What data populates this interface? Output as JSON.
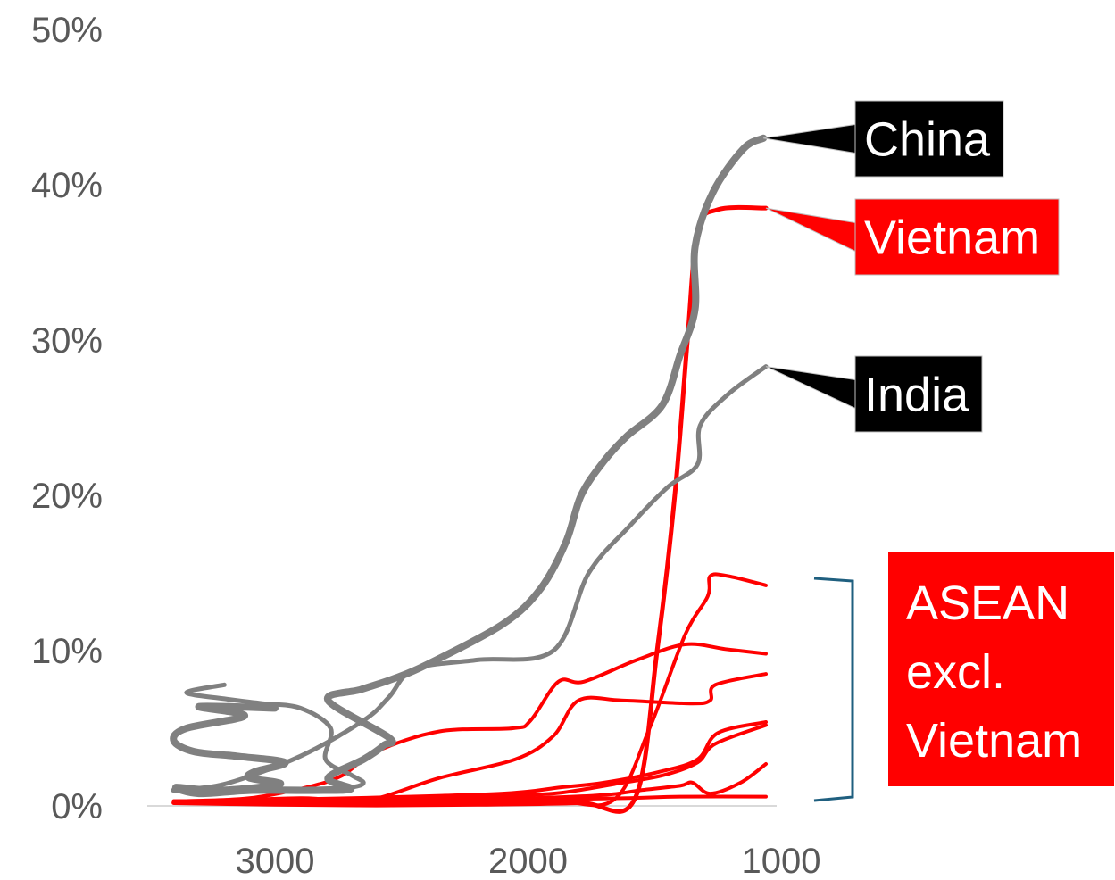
{
  "chart_data": {
    "type": "line",
    "title": "",
    "xlabel": "",
    "ylabel": "",
    "x_reversed": true,
    "xlim": [
      3400,
      1000
    ],
    "ylim": [
      0,
      0.5
    ],
    "x_ticks": [
      3000,
      2000,
      1000
    ],
    "x_tick_labels": [
      "3000",
      "2000",
      "1000"
    ],
    "y_ticks": [
      0,
      0.1,
      0.2,
      0.3,
      0.4,
      0.5
    ],
    "y_tick_labels": [
      "0%",
      "10%",
      "20%",
      "30%",
      "40%",
      "50%"
    ],
    "colors": {
      "china_india": "#808080",
      "asean": "#ff0000",
      "bracket": "#1f5f7f",
      "china_label_bg": "#000000",
      "vietnam_label_bg": "#ff0000"
    },
    "series": [
      {
        "name": "China",
        "color": "#808080",
        "width": 8,
        "points": [
          [
            3000,
            0.063
          ],
          [
            3300,
            0.064
          ],
          [
            3120,
            0.058
          ],
          [
            3350,
            0.05
          ],
          [
            3400,
            0.042
          ],
          [
            3320,
            0.035
          ],
          [
            3150,
            0.032
          ],
          [
            2960,
            0.028
          ],
          [
            3080,
            0.022
          ],
          [
            3100,
            0.018
          ],
          [
            2980,
            0.014
          ],
          [
            3220,
            0.01
          ],
          [
            3390,
            0.012
          ],
          [
            3300,
            0.008
          ],
          [
            3100,
            0.01
          ],
          [
            2850,
            0.01
          ],
          [
            2700,
            0.011
          ],
          [
            2790,
            0.018
          ],
          [
            2650,
            0.03
          ],
          [
            2570,
            0.039
          ],
          [
            2550,
            0.044
          ],
          [
            2790,
            0.068
          ],
          [
            2660,
            0.075
          ],
          [
            2530,
            0.082
          ],
          [
            2400,
            0.091
          ],
          [
            2100,
            0.117
          ],
          [
            1950,
            0.14
          ],
          [
            1850,
            0.17
          ],
          [
            1790,
            0.2
          ],
          [
            1700,
            0.222
          ],
          [
            1610,
            0.238
          ],
          [
            1470,
            0.258
          ],
          [
            1400,
            0.29
          ],
          [
            1340,
            0.32
          ],
          [
            1340,
            0.36
          ],
          [
            1270,
            0.395
          ],
          [
            1150,
            0.423
          ],
          [
            1070,
            0.43
          ]
        ]
      },
      {
        "name": "India",
        "color": "#808080",
        "width": 5,
        "points": [
          [
            3200,
            0.078
          ],
          [
            3350,
            0.073
          ],
          [
            3200,
            0.069
          ],
          [
            3050,
            0.066
          ],
          [
            2900,
            0.063
          ],
          [
            2780,
            0.05
          ],
          [
            2800,
            0.03
          ],
          [
            2700,
            0.02
          ],
          [
            2650,
            0.015
          ],
          [
            2700,
            0.012
          ],
          [
            2850,
            0.011
          ],
          [
            3050,
            0.011
          ],
          [
            3400,
            0.01
          ],
          [
            3200,
            0.014
          ],
          [
            2900,
            0.032
          ],
          [
            2650,
            0.055
          ],
          [
            2550,
            0.07
          ],
          [
            2450,
            0.088
          ],
          [
            2200,
            0.094
          ],
          [
            1900,
            0.1
          ],
          [
            1760,
            0.15
          ],
          [
            1600,
            0.18
          ],
          [
            1450,
            0.205
          ],
          [
            1330,
            0.22
          ],
          [
            1320,
            0.245
          ],
          [
            1210,
            0.265
          ],
          [
            1060,
            0.283
          ]
        ]
      },
      {
        "name": "Vietnam",
        "color": "#ff0000",
        "width": 5,
        "points": [
          [
            3400,
            0.002
          ],
          [
            3000,
            0.001
          ],
          [
            2600,
            0.0005
          ],
          [
            2200,
            0.001
          ],
          [
            1800,
            0.002
          ],
          [
            1580,
            0.004
          ],
          [
            1490,
            0.1
          ],
          [
            1420,
            0.2
          ],
          [
            1370,
            0.3
          ],
          [
            1330,
            0.37
          ],
          [
            1250,
            0.384
          ],
          [
            1060,
            0.385
          ]
        ]
      },
      {
        "name": "",
        "color": "#ff0000",
        "width": 4,
        "points": [
          [
            3400,
            0.003
          ],
          [
            3100,
            0.005
          ],
          [
            2850,
            0.013
          ],
          [
            2730,
            0.02
          ],
          [
            2600,
            0.035
          ],
          [
            2350,
            0.048
          ],
          [
            2060,
            0.05
          ],
          [
            1990,
            0.055
          ],
          [
            1880,
            0.08
          ],
          [
            1780,
            0.08
          ],
          [
            1570,
            0.094
          ],
          [
            1380,
            0.104
          ],
          [
            1220,
            0.101
          ],
          [
            1060,
            0.098
          ]
        ]
      },
      {
        "name": "",
        "color": "#ff0000",
        "width": 4,
        "points": [
          [
            3400,
            0.002
          ],
          [
            2900,
            0.005
          ],
          [
            2650,
            0.003
          ],
          [
            2350,
            0.018
          ],
          [
            2050,
            0.03
          ],
          [
            1900,
            0.045
          ],
          [
            1800,
            0.068
          ],
          [
            1630,
            0.068
          ],
          [
            1360,
            0.066
          ],
          [
            1280,
            0.068
          ],
          [
            1260,
            0.078
          ],
          [
            1060,
            0.085
          ]
        ]
      },
      {
        "name": "",
        "color": "#ff0000",
        "width": 4,
        "points": [
          [
            3400,
            0.003
          ],
          [
            2900,
            0.003
          ],
          [
            2300,
            0.002
          ],
          [
            1900,
            0.003
          ],
          [
            1660,
            0.004
          ],
          [
            1520,
            0.05
          ],
          [
            1380,
            0.11
          ],
          [
            1290,
            0.135
          ],
          [
            1280,
            0.148
          ],
          [
            1210,
            0.148
          ],
          [
            1060,
            0.142
          ]
        ]
      },
      {
        "name": "",
        "color": "#ff0000",
        "width": 4,
        "points": [
          [
            3400,
            0.003
          ],
          [
            2700,
            0.005
          ],
          [
            2100,
            0.008
          ],
          [
            1870,
            0.012
          ],
          [
            1700,
            0.015
          ],
          [
            1480,
            0.022
          ],
          [
            1330,
            0.03
          ],
          [
            1250,
            0.047
          ],
          [
            1060,
            0.054
          ]
        ]
      },
      {
        "name": "",
        "color": "#ff0000",
        "width": 4,
        "points": [
          [
            3400,
            0.003
          ],
          [
            2700,
            0.004
          ],
          [
            2200,
            0.006
          ],
          [
            1900,
            0.008
          ],
          [
            1660,
            0.014
          ],
          [
            1460,
            0.02
          ],
          [
            1330,
            0.028
          ],
          [
            1260,
            0.04
          ],
          [
            1060,
            0.052
          ]
        ]
      },
      {
        "name": "",
        "color": "#ff0000",
        "width": 4,
        "points": [
          [
            3400,
            0.002
          ],
          [
            2600,
            0.003
          ],
          [
            2000,
            0.005
          ],
          [
            1700,
            0.007
          ],
          [
            1560,
            0.01
          ],
          [
            1400,
            0.013
          ],
          [
            1350,
            0.015
          ],
          [
            1280,
            0.008
          ],
          [
            1160,
            0.015
          ],
          [
            1060,
            0.027
          ]
        ]
      },
      {
        "name": "",
        "color": "#ff0000",
        "width": 4,
        "points": [
          [
            3400,
            0.002
          ],
          [
            2600,
            0.003
          ],
          [
            2000,
            0.004
          ],
          [
            1600,
            0.005
          ],
          [
            1400,
            0.006
          ],
          [
            1060,
            0.006
          ]
        ]
      }
    ],
    "annotations": [
      {
        "text": "China",
        "bg": "#000000",
        "anchor_series": "China"
      },
      {
        "text": "Vietnam",
        "bg": "#ff0000",
        "anchor_series": "Vietnam"
      },
      {
        "text": "India",
        "bg": "#000000",
        "anchor_series": "India"
      },
      {
        "text": "ASEAN excl. Vietnam",
        "lines": [
          "ASEAN",
          "excl.",
          "Vietnam"
        ],
        "bg": "#ff0000"
      }
    ],
    "grid": false,
    "legend": "none"
  }
}
